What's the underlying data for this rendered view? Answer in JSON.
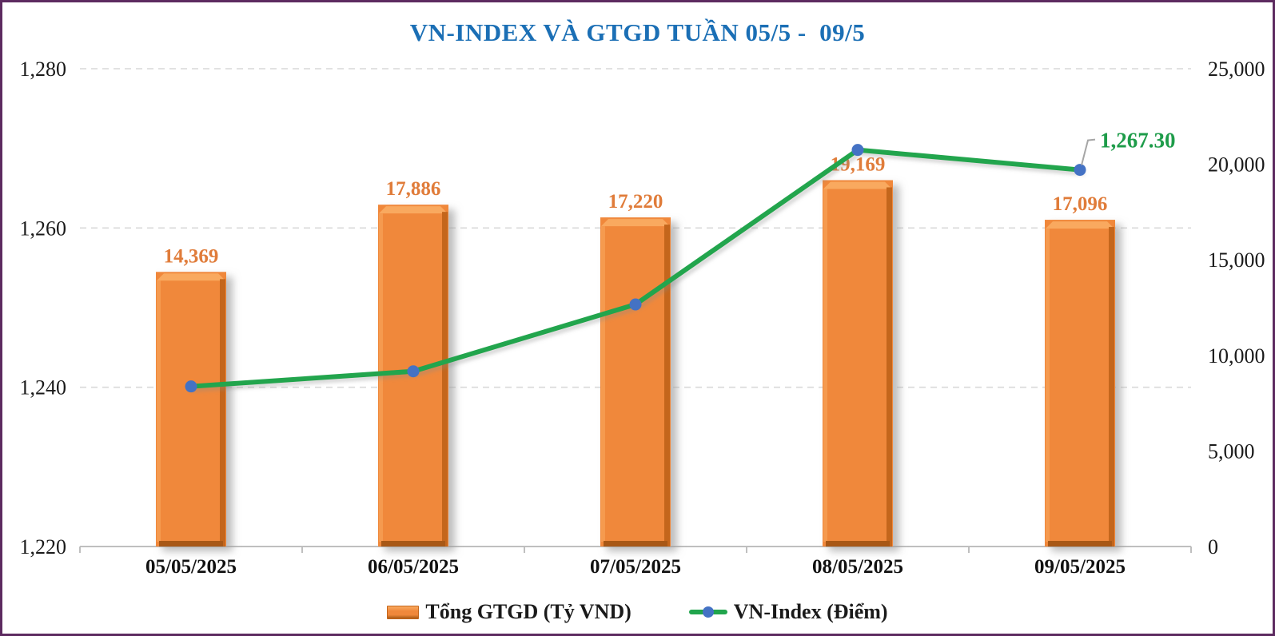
{
  "title": "VN-INDEX VÀ GTGD TUẦN 05/5 -  09/5",
  "colors": {
    "border": "#5D2B60",
    "title": "#1B6FB5",
    "bar_fill": "#F0883B",
    "bar_bevel_light": "#F9A95F",
    "bar_edge_left": "#F59A50",
    "bar_edge_right": "#C4661C",
    "bar_edge_bottom": "#A85915",
    "bar_shadow": "#999999",
    "bar_label": "#E07C3A",
    "line": "#21A54D",
    "marker": "#4472C4",
    "annotation_text": "#1E9C4A",
    "leader": "#A6A6A6",
    "grid": "#D9D9D9",
    "axis": "#BFBFBF",
    "text": "#1A1A1A"
  },
  "chart_data": {
    "type": "bar+line combo",
    "title": "VN-INDEX VÀ GTGD TUẦN 05/5 -  09/5",
    "categories": [
      "05/05/2025",
      "06/05/2025",
      "07/05/2025",
      "08/05/2025",
      "09/05/2025"
    ],
    "series": [
      {
        "name": "Tổng GTGD (Tỷ VND)",
        "type": "bar",
        "axis": "right",
        "values": [
          14369,
          17886,
          17220,
          19169,
          17096
        ],
        "labels": [
          "14,369",
          "17,886",
          "17,220",
          "19,169",
          "17,096"
        ]
      },
      {
        "name": "VN-Index (Điểm)",
        "type": "line",
        "axis": "left",
        "values": [
          1240.1,
          1242.0,
          1250.4,
          1269.8,
          1267.3
        ]
      }
    ],
    "left_axis": {
      "min": 1220,
      "max": 1280,
      "tick_values": [
        1220,
        1240,
        1260,
        1280
      ],
      "tick_labels": [
        "1,220",
        "1,240",
        "1,260",
        "1,280"
      ]
    },
    "right_axis": {
      "min": 0,
      "max": 25000,
      "tick_values": [
        0,
        5000,
        10000,
        15000,
        20000,
        25000
      ],
      "tick_labels": [
        "0",
        "5,000",
        "10,000",
        "15,000",
        "20,000",
        "25,000"
      ]
    },
    "annotation": {
      "text": "1,267.30",
      "category": "09/05/2025",
      "point_index": 4
    },
    "grid": "horizontal dashed",
    "legend_position": "bottom"
  },
  "legend": {
    "items": [
      {
        "label": "Tổng GTGD (Tỷ VND)",
        "swatch": "bar"
      },
      {
        "label": "VN-Index (Điểm)",
        "swatch": "line-marker"
      }
    ]
  }
}
